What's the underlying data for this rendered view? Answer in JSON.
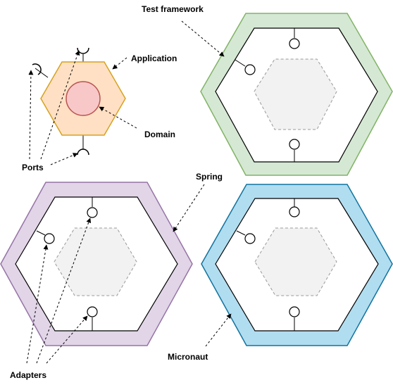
{
  "labels": {
    "test_framework": "Test framework",
    "application": "Application",
    "domain": "Domain",
    "ports": "Ports",
    "spring": "Spring",
    "micronaut": "Micronaut",
    "adapters": "Adapters"
  },
  "colors": {
    "application_fill": "#ffe0c4",
    "application_stroke": "#d6a21e",
    "domain_fill": "#f8c8c8",
    "domain_stroke": "#b85450",
    "test_framework_fill": "#d5e8d4",
    "test_framework_stroke": "#82b366",
    "spring_fill": "#e1d5e7",
    "spring_stroke": "#9673a6",
    "micronaut_fill": "#b1ddf0",
    "micronaut_stroke": "#10739e",
    "inner_fill": "#ffffff",
    "core_fill": "#f2f2f2",
    "core_stroke": "#999999"
  }
}
